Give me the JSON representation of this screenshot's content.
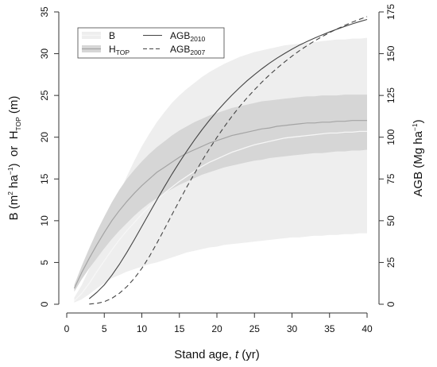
{
  "chart_data": {
    "type": "line",
    "x": [
      1,
      2,
      3,
      4,
      5,
      6,
      7,
      8,
      9,
      10,
      11,
      12,
      13,
      14,
      15,
      16,
      17,
      18,
      19,
      20,
      21,
      22,
      23,
      24,
      25,
      26,
      27,
      28,
      29,
      30,
      31,
      32,
      33,
      34,
      35,
      36,
      37,
      38,
      39,
      40
    ],
    "xlabel": {
      "main": "Stand age, ",
      "italic": "t",
      "unit": " (yr)"
    },
    "ylabel_left": {
      "b": "B (m",
      "b_sup": "2",
      "b_mid": " ha",
      "b_sup2": "−1",
      "b_end": ")",
      "or": "  or  ",
      "h": "H",
      "h_sub": "TOP",
      "h_end": " (m)"
    },
    "ylabel_right": {
      "main": "AGB (Mg ha",
      "sup": "−1",
      "end": ")"
    },
    "xlim": [
      0,
      40
    ],
    "ylim_left": [
      0,
      35
    ],
    "ylim_right": [
      0,
      175
    ],
    "x_ticks": [
      0,
      5,
      10,
      15,
      20,
      25,
      30,
      35,
      40
    ],
    "y_ticks_left": [
      0,
      5,
      10,
      15,
      20,
      25,
      30,
      35
    ],
    "y_ticks_right": [
      0,
      25,
      50,
      75,
      100,
      125,
      150,
      175
    ],
    "legend": {
      "b": "B",
      "htop_main": "H",
      "htop_sub": "TOP",
      "agb_main": "AGB",
      "agb2010_sub": "2010",
      "agb2007_sub": "2007"
    },
    "series": [
      {
        "name": "B",
        "axis": "left",
        "values": [
          0.4,
          1.3,
          2.5,
          3.9,
          5.2,
          6.5,
          7.7,
          8.8,
          9.8,
          10.8,
          11.7,
          12.5,
          13.3,
          14.0,
          14.7,
          15.3,
          15.9,
          16.5,
          17.0,
          17.4,
          17.8,
          18.2,
          18.5,
          18.8,
          19.1,
          19.3,
          19.5,
          19.7,
          19.9,
          20.0,
          20.1,
          20.2,
          20.3,
          20.4,
          20.5,
          20.5,
          20.6,
          20.6,
          20.7,
          20.7
        ],
        "lower": [
          0.2,
          0.6,
          1.2,
          1.9,
          2.5,
          3.1,
          3.5,
          3.9,
          4.2,
          4.5,
          4.8,
          5.0,
          5.3,
          5.6,
          5.9,
          6.2,
          6.4,
          6.6,
          6.8,
          6.9,
          7.1,
          7.2,
          7.3,
          7.4,
          7.5,
          7.6,
          7.7,
          7.8,
          7.9,
          8.0,
          8.0,
          8.1,
          8.2,
          8.2,
          8.3,
          8.3,
          8.4,
          8.4,
          8.5,
          8.5
        ],
        "upper": [
          0.8,
          2.3,
          4.2,
          6.4,
          8.8,
          11.1,
          13.3,
          15.3,
          17.2,
          18.9,
          20.4,
          21.8,
          23.0,
          24.1,
          25.0,
          25.8,
          26.5,
          27.2,
          27.8,
          28.3,
          28.8,
          29.2,
          29.6,
          29.9,
          30.2,
          30.4,
          30.6,
          30.8,
          31.0,
          31.1,
          31.2,
          31.3,
          31.4,
          31.5,
          31.6,
          31.7,
          31.7,
          31.8,
          31.8,
          31.9
        ]
      },
      {
        "name": "HTOP",
        "axis": "left",
        "values": [
          1.9,
          3.8,
          5.5,
          7.1,
          8.6,
          10.0,
          11.2,
          12.3,
          13.3,
          14.2,
          15.0,
          15.8,
          16.4,
          17.0,
          17.6,
          18.1,
          18.5,
          18.9,
          19.3,
          19.6,
          19.9,
          20.2,
          20.4,
          20.6,
          20.8,
          21.0,
          21.1,
          21.3,
          21.4,
          21.5,
          21.6,
          21.7,
          21.7,
          21.8,
          21.8,
          21.9,
          21.9,
          22.0,
          22.0,
          22.0
        ],
        "lower": [
          1.5,
          3.0,
          4.3,
          5.5,
          6.7,
          7.8,
          8.8,
          9.7,
          10.6,
          11.4,
          12.1,
          12.7,
          13.3,
          13.8,
          14.3,
          14.7,
          15.1,
          15.5,
          15.8,
          16.1,
          16.4,
          16.6,
          16.8,
          17.0,
          17.2,
          17.3,
          17.5,
          17.6,
          17.7,
          17.8,
          17.9,
          18.0,
          18.1,
          18.1,
          18.2,
          18.3,
          18.3,
          18.4,
          18.4,
          18.5
        ],
        "upper": [
          2.3,
          4.6,
          6.7,
          8.7,
          10.5,
          12.2,
          13.7,
          15.0,
          16.1,
          17.1,
          18.0,
          18.8,
          19.5,
          20.2,
          20.8,
          21.3,
          21.8,
          22.2,
          22.6,
          22.9,
          23.2,
          23.5,
          23.7,
          23.9,
          24.1,
          24.3,
          24.4,
          24.5,
          24.6,
          24.7,
          24.8,
          24.9,
          24.9,
          25.0,
          25.0,
          25.0,
          25.1,
          25.1,
          25.1,
          25.1
        ]
      },
      {
        "name": "AGB2010",
        "axis": "right",
        "x": [
          3,
          4,
          5,
          6,
          7,
          8,
          9,
          10,
          11,
          12,
          13,
          14,
          15,
          16,
          17,
          18,
          19,
          20,
          21,
          22,
          23,
          24,
          25,
          26,
          27,
          28,
          29,
          30,
          31,
          32,
          33,
          34,
          35,
          36,
          37,
          38,
          39,
          40
        ],
        "values": [
          3.3,
          7.1,
          11.6,
          17.3,
          23.8,
          31.0,
          38.7,
          46.6,
          54.5,
          62.5,
          70.3,
          77.8,
          85.0,
          91.8,
          98.3,
          104.4,
          110.1,
          115.5,
          120.5,
          125.2,
          129.6,
          133.7,
          137.5,
          141.0,
          144.3,
          147.3,
          150.1,
          152.7,
          155.1,
          157.3,
          159.3,
          161.2,
          163.0,
          164.7,
          166.3,
          167.8,
          169.2,
          170.5
        ]
      },
      {
        "name": "AGB2007",
        "axis": "right",
        "x": [
          3,
          4,
          5,
          6,
          7,
          8,
          9,
          10,
          11,
          12,
          13,
          14,
          15,
          16,
          17,
          18,
          19,
          20,
          21,
          22,
          23,
          24,
          25,
          26,
          27,
          28,
          29,
          30,
          31,
          32,
          33,
          34,
          35,
          36,
          37,
          38,
          39,
          40
        ],
        "values": [
          0.1,
          0.5,
          1.5,
          3.5,
          6.5,
          10.5,
          15.5,
          21.5,
          28.5,
          36.5,
          45.0,
          53.5,
          62.0,
          70.3,
          78.2,
          85.8,
          93.0,
          99.9,
          106.4,
          112.5,
          118.2,
          123.5,
          128.4,
          133.0,
          137.3,
          141.3,
          145.0,
          148.5,
          151.8,
          154.8,
          157.6,
          160.2,
          162.6,
          164.8,
          166.9,
          168.8,
          170.6,
          172.2
        ]
      }
    ]
  },
  "colors": {
    "b_band": "#eeeeee",
    "htop_band": "#d6d6d6",
    "b_line": "#f6f6f6",
    "htop_line": "#a4a4a4",
    "agb_line": "#444444",
    "axis": "#333333"
  }
}
